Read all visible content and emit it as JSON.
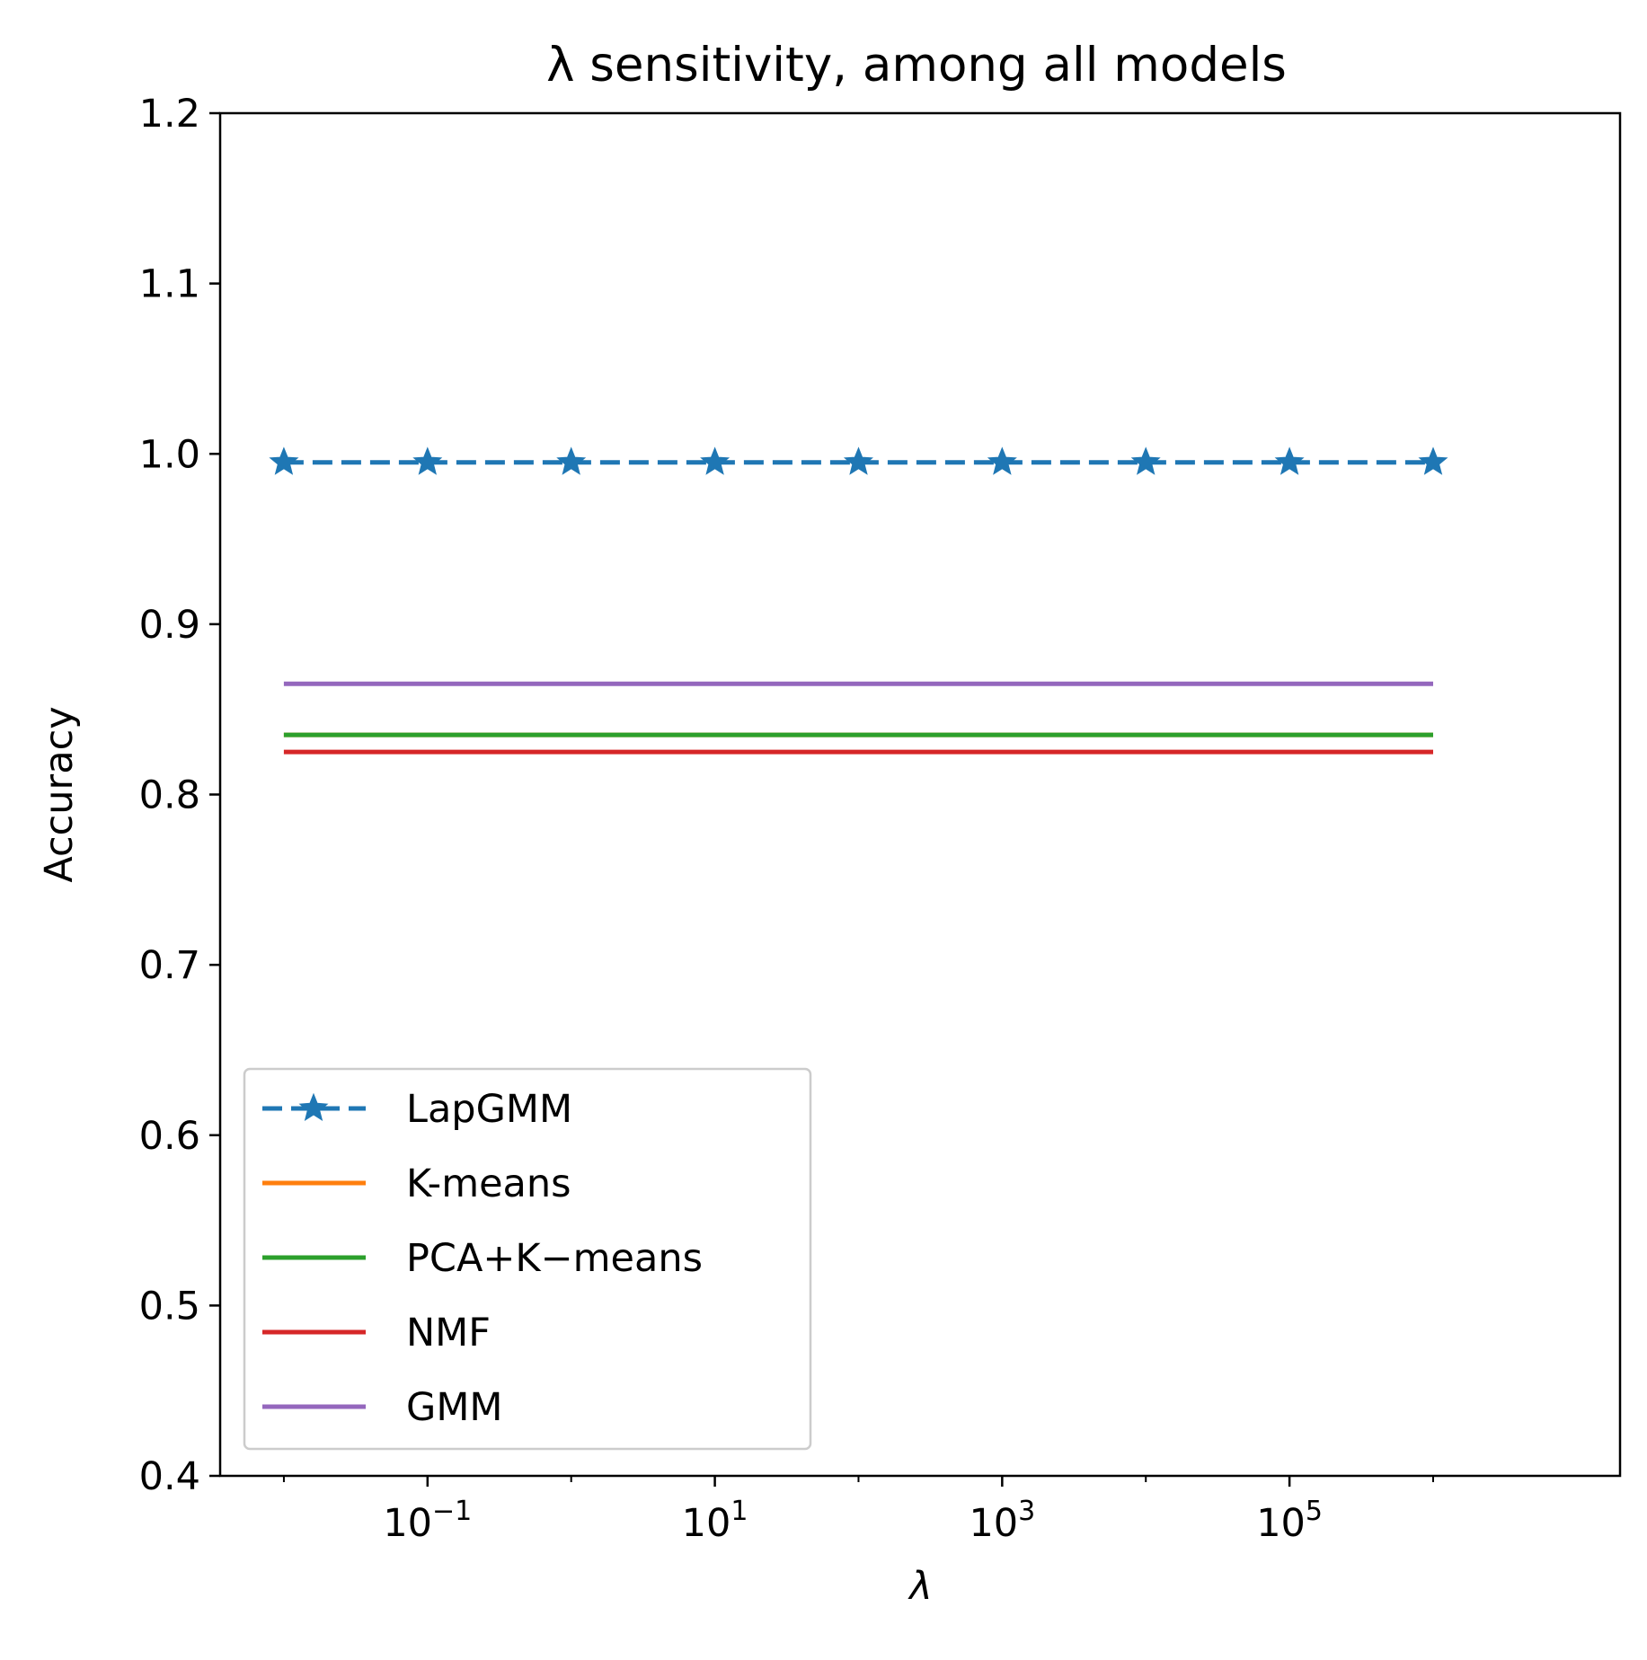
{
  "chart_data": {
    "type": "line",
    "title": "λ sensitivity, among all models",
    "xlabel": "λ",
    "ylabel": "Accuracy",
    "xscale": "log",
    "xlim": [
      0.0036,
      20000000
    ],
    "ylim": [
      0.4,
      1.2
    ],
    "grid": false,
    "legend_position": "lower left",
    "yticks": [
      0.4,
      0.5,
      0.6,
      0.7,
      0.8,
      0.9,
      1.0,
      1.1,
      1.2
    ],
    "ytick_labels": [
      "0.4",
      "0.5",
      "0.6",
      "0.7",
      "0.8",
      "0.9",
      "1.0",
      "1.1",
      "1.2"
    ],
    "xticks_major": [
      {
        "value": 0.1,
        "base": "10",
        "exp": "−1"
      },
      {
        "value": 10,
        "base": "10",
        "exp": "1"
      },
      {
        "value": 1000,
        "base": "10",
        "exp": "3"
      },
      {
        "value": 100000,
        "base": "10",
        "exp": "5"
      }
    ],
    "xticks_minor": [
      0.01,
      1,
      100,
      10000,
      1000000
    ],
    "x": [
      0.01,
      0.1,
      1,
      10,
      100,
      1000,
      10000,
      100000,
      1000000
    ],
    "series": [
      {
        "name": "LapGMM",
        "color": "#1f77b4",
        "style": "dashed",
        "marker": "star",
        "values": [
          0.995,
          0.995,
          0.995,
          0.995,
          0.995,
          0.995,
          0.995,
          0.995,
          0.995
        ]
      },
      {
        "name": "K-means",
        "color": "#ff7f0e",
        "style": "solid",
        "marker": "none",
        "values": [
          0.835,
          0.835,
          0.835,
          0.835,
          0.835,
          0.835,
          0.835,
          0.835,
          0.835
        ]
      },
      {
        "name": "PCA+K−means",
        "color": "#2ca02c",
        "style": "solid",
        "marker": "none",
        "values": [
          0.835,
          0.835,
          0.835,
          0.835,
          0.835,
          0.835,
          0.835,
          0.835,
          0.835
        ]
      },
      {
        "name": "NMF",
        "color": "#d62728",
        "style": "solid",
        "marker": "none",
        "values": [
          0.825,
          0.825,
          0.825,
          0.825,
          0.825,
          0.825,
          0.825,
          0.825,
          0.825
        ]
      },
      {
        "name": "GMM",
        "color": "#9467bd",
        "style": "solid",
        "marker": "none",
        "values": [
          0.865,
          0.865,
          0.865,
          0.865,
          0.865,
          0.865,
          0.865,
          0.865,
          0.865
        ]
      }
    ]
  }
}
